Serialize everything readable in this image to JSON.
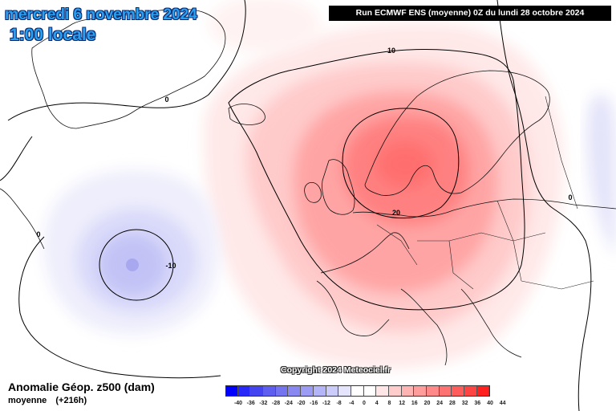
{
  "header": {
    "date": "mercredi 6 novembre 2024",
    "time": "1:00 locale",
    "run": "Run ECMWF ENS (moyenne) 0Z du lundi 28 octobre 2024"
  },
  "map": {
    "contour_labels": [
      "10",
      "0",
      "20",
      "0",
      "0",
      "-10"
    ],
    "copyright": "Copyright 2024 Meteociel.fr"
  },
  "footer": {
    "title": "Anomalie Géop. z500 (dam)",
    "subtitle_a": "moyenne",
    "subtitle_b": "(+216h)"
  },
  "legend": {
    "ticks": [
      "-40",
      "-36",
      "-32",
      "-28",
      "-24",
      "-20",
      "-16",
      "-12",
      "-8",
      "-4",
      "0",
      "4",
      "8",
      "12",
      "16",
      "20",
      "24",
      "28",
      "32",
      "36",
      "40",
      "44"
    ],
    "colors": [
      "#0000ff",
      "#2828f8",
      "#4444f0",
      "#5e5ef0",
      "#7474f0",
      "#8888f0",
      "#9c9cf4",
      "#b4b4f8",
      "#ccccfa",
      "#e4e4fc",
      "#ffffff",
      "#ffffff",
      "#ffe6e6",
      "#ffcccc",
      "#ffb4b4",
      "#ff9c9c",
      "#ff8888",
      "#ff7272",
      "#ff5c5c",
      "#ff4444",
      "#ff2020"
    ]
  }
}
